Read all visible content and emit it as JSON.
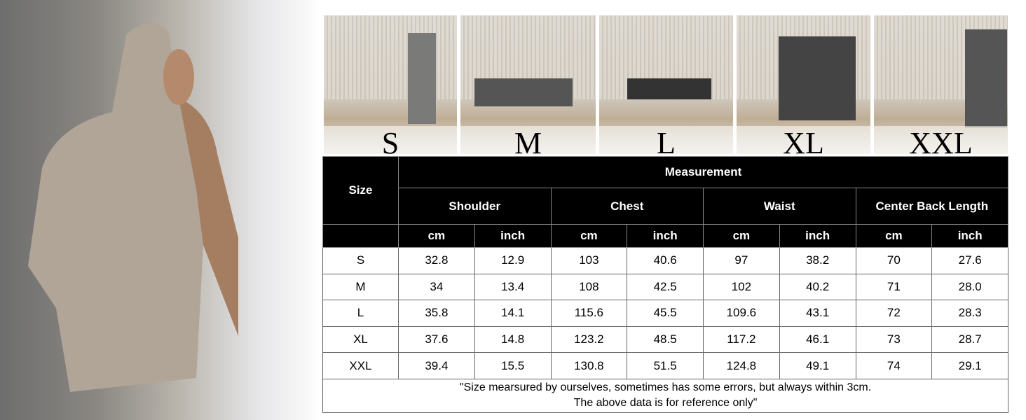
{
  "size_labels": [
    "S",
    "M",
    "L",
    "XL",
    "XXL"
  ],
  "table": {
    "size_header": "Size",
    "group_header": "Measurement",
    "measures": [
      "Shoulder",
      "Chest",
      "Waist",
      "Center Back Length"
    ],
    "units": [
      "cm",
      "inch"
    ],
    "rows": [
      {
        "size": "S",
        "values": [
          "32.8",
          "12.9",
          "103",
          "40.6",
          "97",
          "38.2",
          "70",
          "27.6"
        ]
      },
      {
        "size": "M",
        "values": [
          "34",
          "13.4",
          "108",
          "42.5",
          "102",
          "40.2",
          "71",
          "28.0"
        ]
      },
      {
        "size": "L",
        "values": [
          "35.8",
          "14.1",
          "115.6",
          "45.5",
          "109.6",
          "43.1",
          "72",
          "28.3"
        ]
      },
      {
        "size": "XL",
        "values": [
          "37.6",
          "14.8",
          "123.2",
          "48.5",
          "117.2",
          "46.1",
          "73",
          "28.7"
        ]
      },
      {
        "size": "XXL",
        "values": [
          "39.4",
          "15.5",
          "130.8",
          "51.5",
          "124.8",
          "49.1",
          "74",
          "29.1"
        ]
      }
    ],
    "note_line1": "\"Size mearsured by ourselves, sometimes has some errors, but always within 3cm.",
    "note_line2": "The above data is for reference only\""
  }
}
